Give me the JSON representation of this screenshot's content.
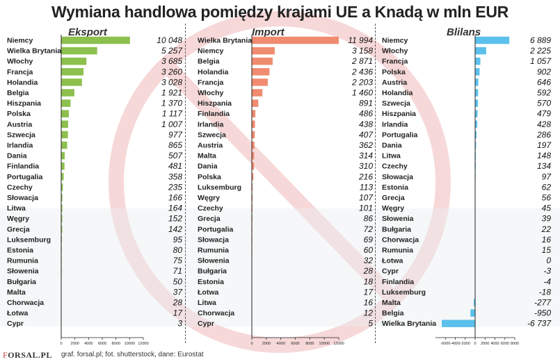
{
  "title": "Wymiana handlowa pomiędzy krajami UE a Knadą w mln EUR",
  "footer": {
    "logo_prefix": "F",
    "logo_rest": "ORSAL.PL",
    "credit": "graf. forsal.pl; fot. shutterstock, dane: Eurostat"
  },
  "colors": {
    "export": "#8dc04e",
    "import": "#f08b70",
    "balance": "#5bc0eb",
    "background_symbol": "#f2b8b8"
  },
  "chart_data": [
    {
      "type": "bar",
      "orientation": "horizontal",
      "title": "Eksport",
      "categories": [
        "Niemcy",
        "Wielka Brytania",
        "Włochy",
        "Francja",
        "Holandia",
        "Belgia",
        "Hiszpania",
        "Polska",
        "Austria",
        "Szwecja",
        "Irlandia",
        "Dania",
        "Finlandia",
        "Portugalia",
        "Czechy",
        "Słowacja",
        "Litwa",
        "Węgry",
        "Grecja",
        "Luksemburg",
        "Estonia",
        "Rumunia",
        "Słowenia",
        "Bułgaria",
        "Malta",
        "Chorwacja",
        "Łotwa",
        "Cypr"
      ],
      "values": [
        10048,
        5257,
        3685,
        3260,
        3028,
        1921,
        1370,
        1117,
        1007,
        977,
        865,
        507,
        481,
        358,
        235,
        166,
        164,
        152,
        142,
        95,
        80,
        75,
        71,
        50,
        37,
        28,
        17,
        3
      ],
      "value_labels": [
        "10 048",
        "5 257",
        "3 685",
        "3 260",
        "3 028",
        "1 921",
        "1 370",
        "1 117",
        "1 007",
        "977",
        "865",
        "507",
        "481",
        "358",
        "235",
        "166",
        "164",
        "152",
        "142",
        "95",
        "80",
        "75",
        "71",
        "50",
        "37",
        "28",
        "17",
        "3"
      ],
      "xlim": [
        0,
        12000
      ],
      "xticks": [
        0,
        2000,
        4000,
        6000,
        8000,
        10000,
        12000
      ]
    },
    {
      "type": "bar",
      "orientation": "horizontal",
      "title": "Import",
      "categories": [
        "Wielka Brytania",
        "Niemcy",
        "Belgia",
        "Holandia",
        "Francja",
        "Włochy",
        "Hiszpania",
        "Finlandia",
        "Irlandia",
        "Szwecja",
        "Austria",
        "Malta",
        "Dania",
        "Polska",
        "Luksemburg",
        "Węgry",
        "Czechy",
        "Grecja",
        "Portugalia",
        "Słowacja",
        "Rumunia",
        "Słowenia",
        "Bułgaria",
        "Estonia",
        "Łotwa",
        "Litwa",
        "Chorwacja",
        "Cypr"
      ],
      "values": [
        11994,
        3158,
        2871,
        2436,
        2203,
        1460,
        891,
        486,
        438,
        407,
        362,
        314,
        310,
        216,
        113,
        107,
        101,
        86,
        72,
        69,
        60,
        32,
        28,
        18,
        17,
        16,
        12,
        5
      ],
      "value_labels": [
        "11 994",
        "3 158",
        "2 871",
        "2 436",
        "2 203",
        "1 460",
        "891",
        "486",
        "438",
        "407",
        "362",
        "314",
        "310",
        "216",
        "113",
        "107",
        "101",
        "86",
        "72",
        "69",
        "60",
        "32",
        "28",
        "18",
        "17",
        "16",
        "12",
        "5"
      ],
      "xlim": [
        0,
        12000
      ],
      "xticks": [
        0,
        2000,
        4000,
        6000,
        8000,
        10000,
        12000
      ]
    },
    {
      "type": "bar",
      "orientation": "horizontal",
      "title": "Blilans",
      "categories": [
        "Niemcy",
        "Włochy",
        "Francja",
        "Polska",
        "Austria",
        "Holandia",
        "Szwecja",
        "Hiszpania",
        "Irlandia",
        "Portugalia",
        "Dania",
        "Litwa",
        "Czechy",
        "Słowacja",
        "Estonia",
        "Grecja",
        "Węgry",
        "Słowenia",
        "Bułgaria",
        "Chorwacja",
        "Rumunia",
        "Łotwa",
        "Cypr",
        "Finlandia",
        "Luksemburg",
        "Malta",
        "Belgia",
        "Wielka Brytania"
      ],
      "values": [
        6889,
        2225,
        1057,
        902,
        646,
        592,
        570,
        479,
        428,
        286,
        197,
        148,
        134,
        97,
        62,
        56,
        45,
        39,
        22,
        16,
        15,
        0,
        -3,
        -4,
        -18,
        -277,
        -950,
        -6737
      ],
      "value_labels": [
        "6 889",
        "2 225",
        "1 057",
        "902",
        "646",
        "592",
        "570",
        "479",
        "428",
        "286",
        "197",
        "148",
        "134",
        "97",
        "62",
        "56",
        "45",
        "39",
        "22",
        "16",
        "15",
        "0",
        "-3",
        "-4",
        "-18",
        "-277",
        "-950",
        "-6 737"
      ],
      "xlim": [
        -8000,
        8000
      ],
      "xticks": [
        -6000,
        -4000,
        -2000,
        0,
        2000,
        4000,
        6000,
        8000
      ]
    }
  ]
}
